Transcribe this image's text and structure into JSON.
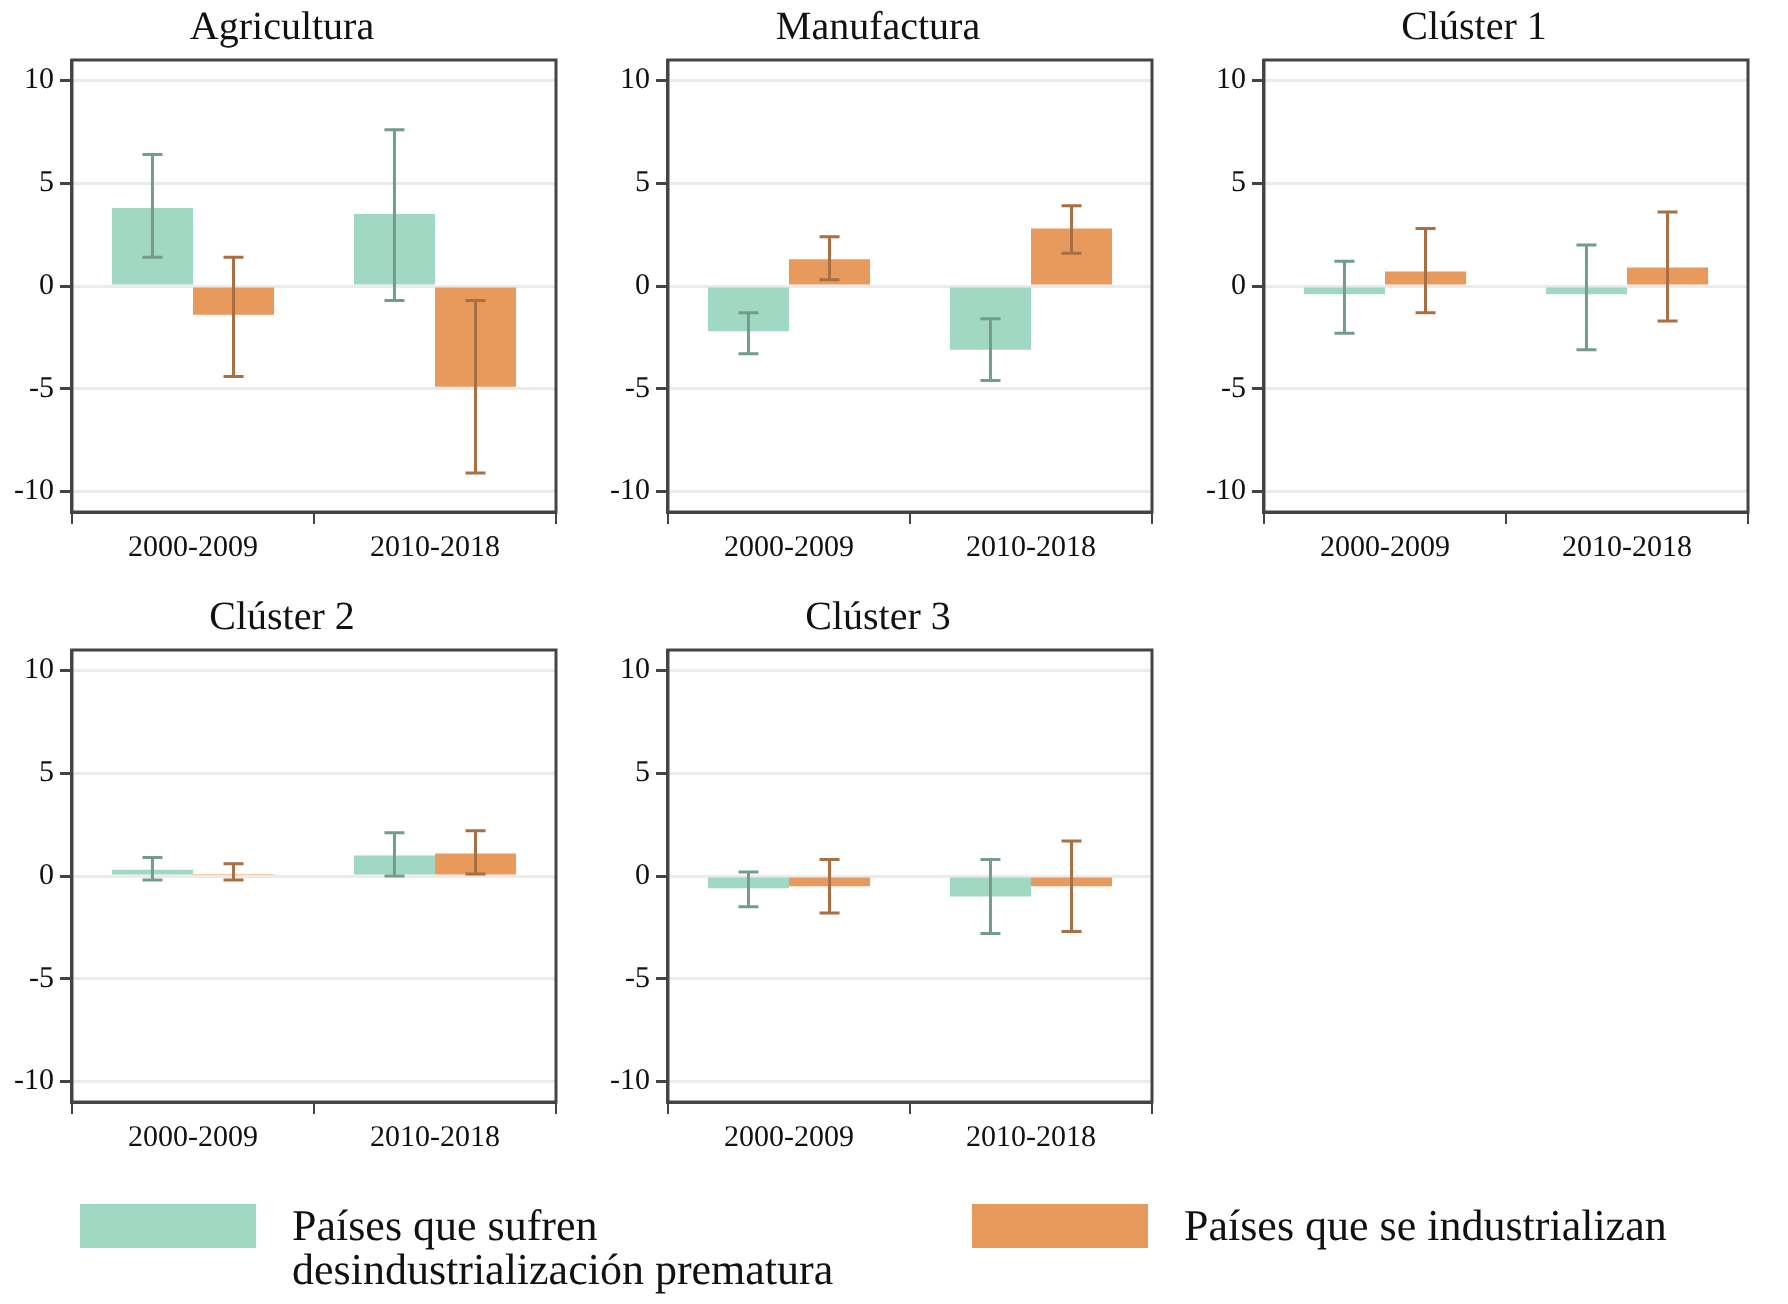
{
  "chart_data": [
    {
      "type": "bar",
      "title": "Agricultura",
      "categories": [
        "2000-2009",
        "2010-2018"
      ],
      "ylim": [
        -11,
        11
      ],
      "yticks": [
        -10,
        -5,
        0,
        5,
        10
      ],
      "grid": "y",
      "legend": "bottom",
      "series": [
        {
          "name": "Países que sufren desindustrialización prematura",
          "color": "#a0d8c3",
          "values": [
            3.8,
            3.5
          ],
          "errors": [
            [
              1.4,
              6.4
            ],
            [
              -0.7,
              7.6
            ]
          ]
        },
        {
          "name": "Países que se industrializan",
          "color": "#e89a5c",
          "values": [
            -1.4,
            -4.9
          ],
          "errors": [
            [
              -4.4,
              1.4
            ],
            [
              -9.1,
              -0.7
            ]
          ]
        }
      ]
    },
    {
      "type": "bar",
      "title": "Manufactura",
      "categories": [
        "2000-2009",
        "2010-2018"
      ],
      "ylim": [
        -11,
        11
      ],
      "yticks": [
        -10,
        -5,
        0,
        5,
        10
      ],
      "grid": "y",
      "legend": "bottom",
      "series": [
        {
          "name": "Países que sufren desindustrialización prematura",
          "color": "#a0d8c3",
          "values": [
            -2.2,
            -3.1
          ],
          "errors": [
            [
              -3.3,
              -1.3
            ],
            [
              -4.6,
              -1.6
            ]
          ]
        },
        {
          "name": "Países que se industrializan",
          "color": "#e89a5c",
          "values": [
            1.3,
            2.8
          ],
          "errors": [
            [
              0.3,
              2.4
            ],
            [
              1.6,
              3.9
            ]
          ]
        }
      ]
    },
    {
      "type": "bar",
      "title": "Clúster 1",
      "categories": [
        "2000-2009",
        "2010-2018"
      ],
      "ylim": [
        -11,
        11
      ],
      "yticks": [
        -10,
        -5,
        0,
        5,
        10
      ],
      "grid": "y",
      "legend": "bottom",
      "series": [
        {
          "name": "Países que sufren desindustrialización prematura",
          "color": "#a0d8c3",
          "values": [
            -0.4,
            -0.4
          ],
          "errors": [
            [
              -2.3,
              1.2
            ],
            [
              -3.1,
              2.0
            ]
          ]
        },
        {
          "name": "Países que se industrializan",
          "color": "#e89a5c",
          "values": [
            0.7,
            0.9
          ],
          "errors": [
            [
              -1.3,
              2.8
            ],
            [
              -1.7,
              3.6
            ]
          ]
        }
      ]
    },
    {
      "type": "bar",
      "title": "Clúster 2",
      "categories": [
        "2000-2009",
        "2010-2018"
      ],
      "ylim": [
        -11,
        11
      ],
      "yticks": [
        -10,
        -5,
        0,
        5,
        10
      ],
      "grid": "y",
      "legend": "bottom",
      "series": [
        {
          "name": "Países que sufren desindustrialización prematura",
          "color": "#a0d8c3",
          "values": [
            0.3,
            1.0
          ],
          "errors": [
            [
              -0.2,
              0.9
            ],
            [
              0,
              2.1
            ]
          ]
        },
        {
          "name": "Países que se industrializan",
          "color": "#e89a5c",
          "values": [
            0.1,
            1.1
          ],
          "errors": [
            [
              -0.2,
              0.6
            ],
            [
              0.1,
              2.2
            ]
          ]
        }
      ]
    },
    {
      "type": "bar",
      "title": "Clúster 3",
      "categories": [
        "2000-2009",
        "2010-2018"
      ],
      "ylim": [
        -11,
        11
      ],
      "yticks": [
        -10,
        -5,
        0,
        5,
        10
      ],
      "grid": "y",
      "legend": "bottom",
      "series": [
        {
          "name": "Países que sufren desindustrialización prematura",
          "color": "#a0d8c3",
          "values": [
            -0.6,
            -1.0
          ],
          "errors": [
            [
              -1.5,
              0.2
            ],
            [
              -2.8,
              0.8
            ]
          ]
        },
        {
          "name": "Países que se industrializan",
          "color": "#e89a5c",
          "values": [
            -0.5,
            -0.5
          ],
          "errors": [
            [
              -1.8,
              0.8
            ],
            [
              -2.7,
              1.7
            ]
          ]
        }
      ]
    }
  ]
}
